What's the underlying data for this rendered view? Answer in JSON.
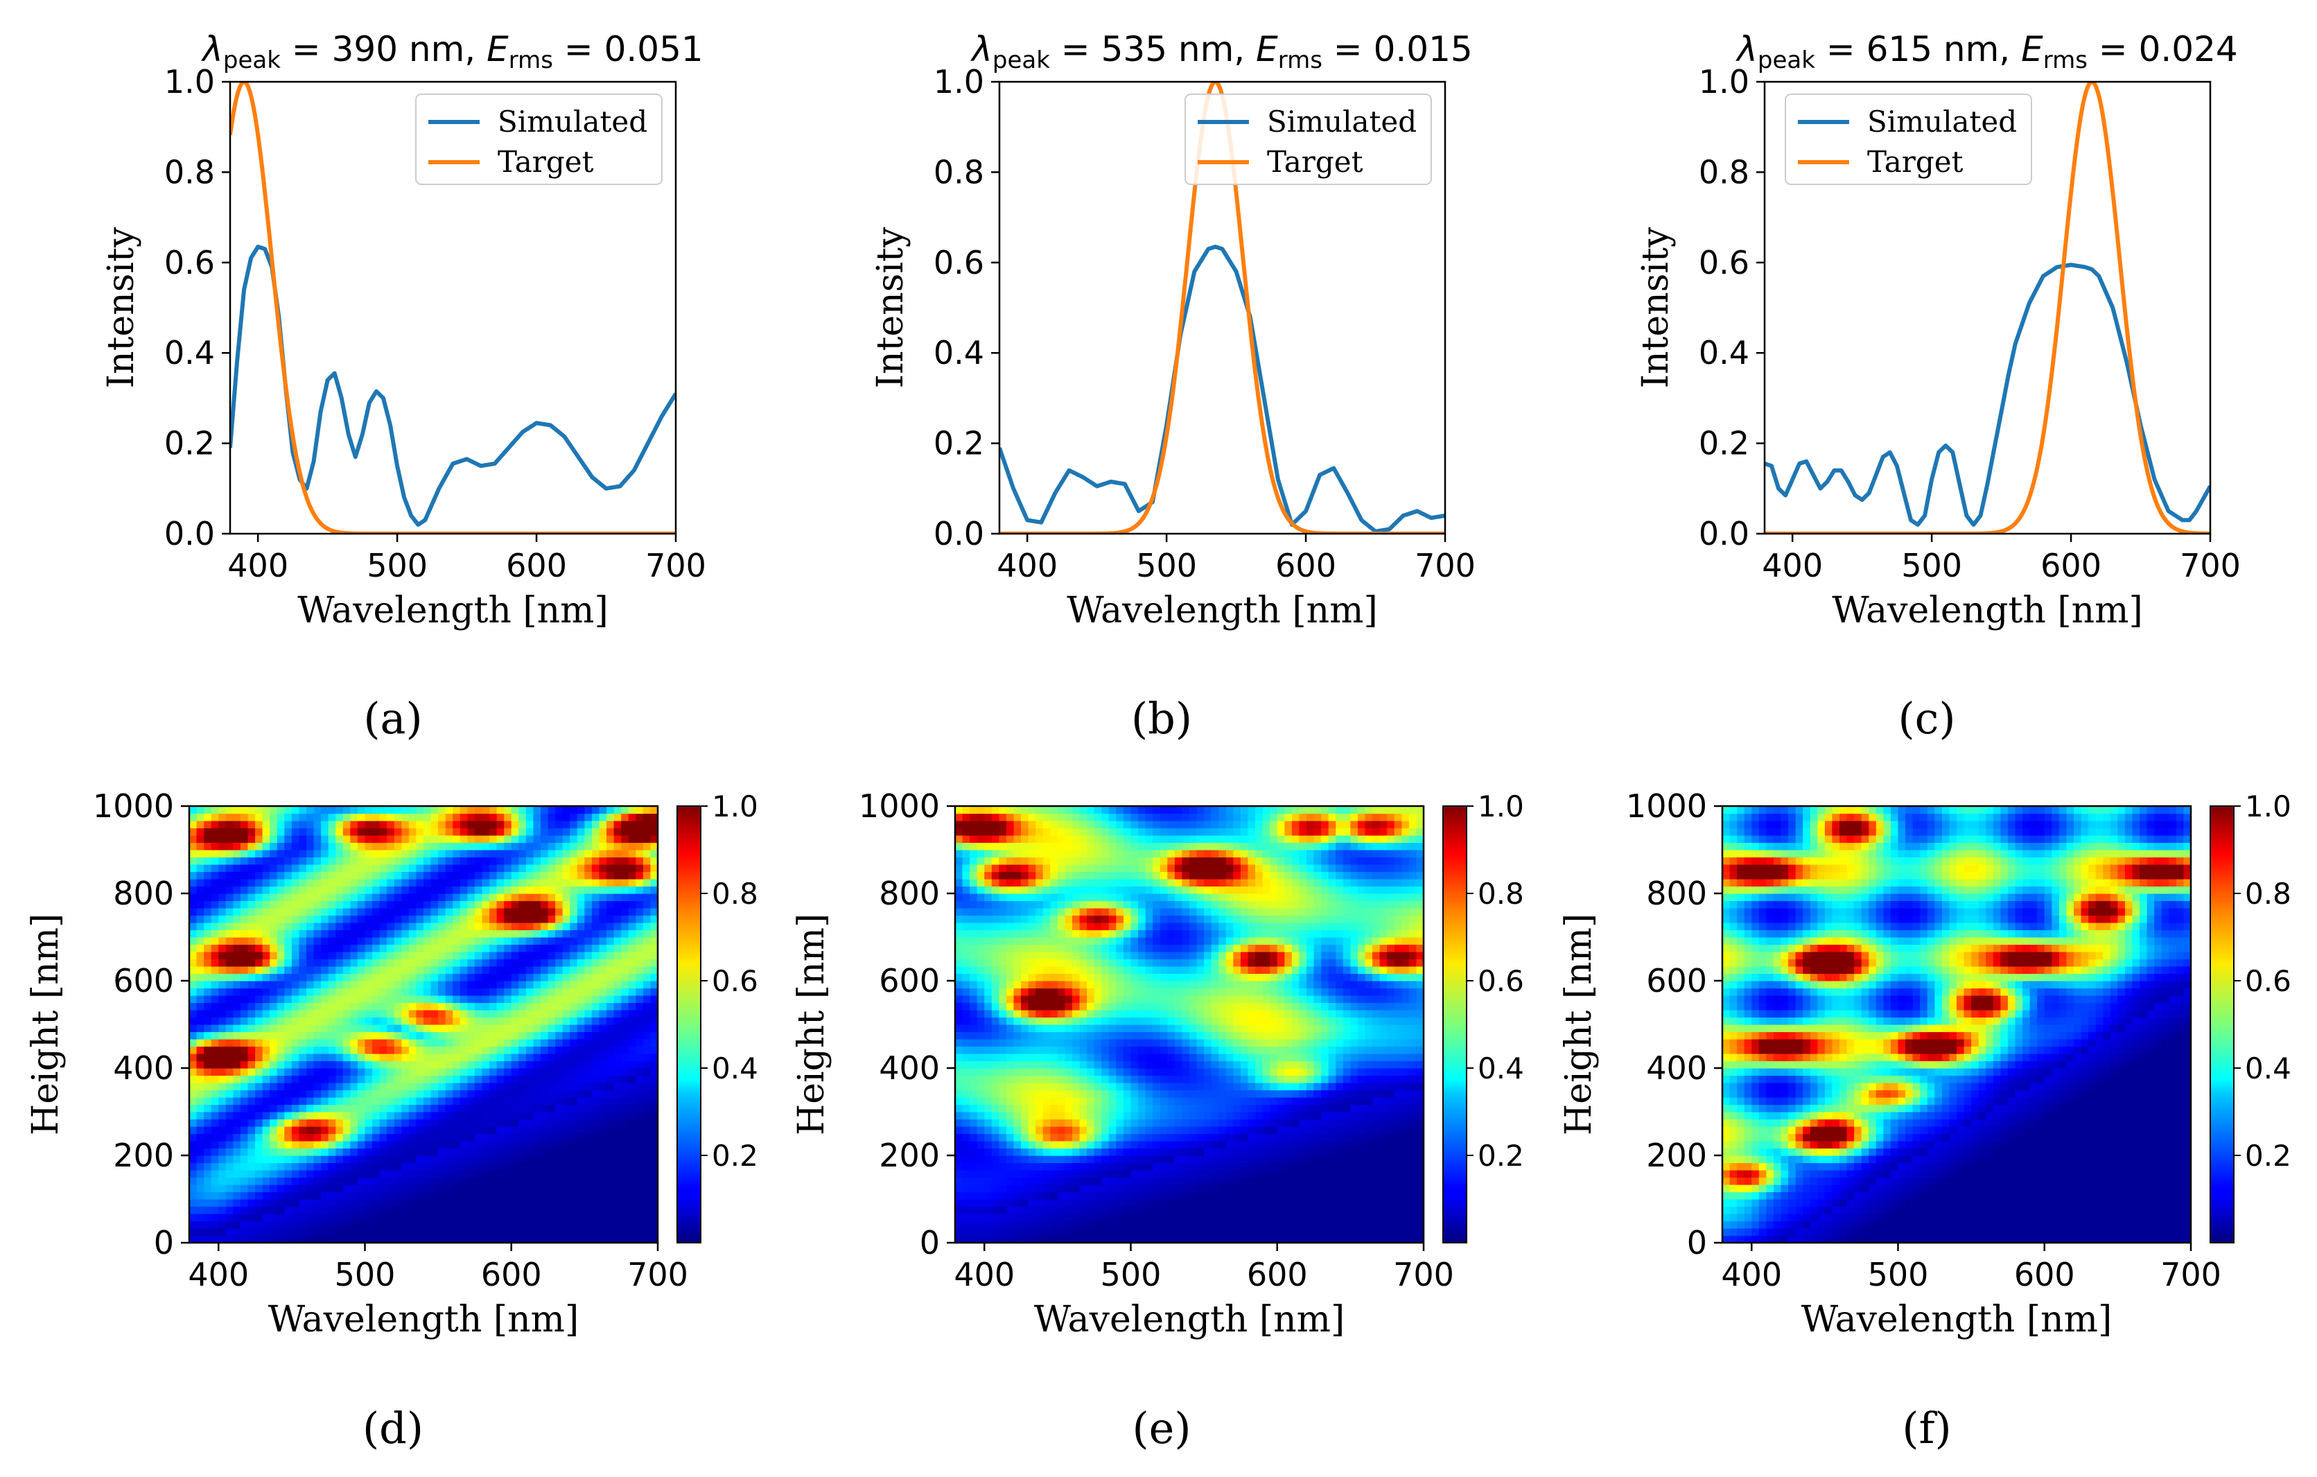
{
  "figure": {
    "captions": [
      "(a)",
      "(b)",
      "(c)",
      "(d)",
      "(e)",
      "(f)"
    ]
  },
  "colors": {
    "simulated": "#1f77b4",
    "target": "#ff7f0e"
  },
  "chart_data": [
    {
      "type": "line",
      "panel": "a",
      "title": "λpeak = 390 nm,  Erms = 0.051",
      "title_parts": {
        "lambda": "λ",
        "peak_sub": "peak",
        "peak_eq": "= 390 nm,",
        "E": "E",
        "rms_sub": "rms",
        "rms_eq": "= 0.051"
      },
      "xlabel": "Wavelength [nm]",
      "ylabel": "Intensity",
      "xlim": [
        380,
        700
      ],
      "ylim": [
        0,
        1.0
      ],
      "xticks": [
        400,
        500,
        600,
        700
      ],
      "yticks": [
        0.0,
        0.2,
        0.4,
        0.6,
        0.8,
        1.0
      ],
      "xtick_labels": [
        "400",
        "500",
        "600",
        "700"
      ],
      "ytick_labels": [
        "0.0",
        "0.2",
        "0.4",
        "0.6",
        "0.8",
        "1.0"
      ],
      "legend": {
        "position": "top-right",
        "entries": [
          "Simulated",
          "Target"
        ]
      },
      "series": [
        {
          "name": "Simulated",
          "x": [
            380,
            385,
            390,
            395,
            400,
            405,
            410,
            415,
            420,
            425,
            430,
            435,
            440,
            445,
            450,
            455,
            460,
            465,
            470,
            475,
            480,
            485,
            490,
            495,
            500,
            505,
            510,
            515,
            520,
            530,
            540,
            550,
            560,
            570,
            580,
            590,
            600,
            610,
            620,
            630,
            640,
            650,
            660,
            670,
            680,
            690,
            700
          ],
          "y": [
            0.19,
            0.38,
            0.54,
            0.61,
            0.635,
            0.63,
            0.59,
            0.48,
            0.32,
            0.18,
            0.12,
            0.1,
            0.16,
            0.27,
            0.34,
            0.355,
            0.3,
            0.22,
            0.17,
            0.22,
            0.29,
            0.315,
            0.3,
            0.24,
            0.15,
            0.08,
            0.04,
            0.02,
            0.03,
            0.1,
            0.155,
            0.165,
            0.15,
            0.155,
            0.19,
            0.225,
            0.245,
            0.24,
            0.215,
            0.17,
            0.125,
            0.1,
            0.105,
            0.14,
            0.2,
            0.26,
            0.31
          ]
        },
        {
          "name": "Target",
          "peak": 390,
          "sigma": 20
        }
      ]
    },
    {
      "type": "line",
      "panel": "b",
      "title": "λpeak = 535 nm,  Erms = 0.015",
      "title_parts": {
        "lambda": "λ",
        "peak_sub": "peak",
        "peak_eq": "= 535 nm,",
        "E": "E",
        "rms_sub": "rms",
        "rms_eq": "= 0.015"
      },
      "xlabel": "Wavelength [nm]",
      "ylabel": "Intensity",
      "xlim": [
        380,
        700
      ],
      "ylim": [
        0,
        1.0
      ],
      "xticks": [
        400,
        500,
        600,
        700
      ],
      "yticks": [
        0.0,
        0.2,
        0.4,
        0.6,
        0.8,
        1.0
      ],
      "xtick_labels": [
        "400",
        "500",
        "600",
        "700"
      ],
      "ytick_labels": [
        "0.0",
        "0.2",
        "0.4",
        "0.6",
        "0.8",
        "1.0"
      ],
      "legend": {
        "position": "top-right",
        "entries": [
          "Simulated",
          "Target"
        ]
      },
      "series": [
        {
          "name": "Simulated",
          "x": [
            380,
            390,
            400,
            410,
            420,
            430,
            440,
            450,
            460,
            470,
            480,
            490,
            500,
            510,
            520,
            530,
            535,
            540,
            550,
            560,
            570,
            580,
            590,
            600,
            610,
            620,
            630,
            640,
            650,
            660,
            670,
            680,
            690,
            700
          ],
          "y": [
            0.19,
            0.1,
            0.03,
            0.025,
            0.09,
            0.14,
            0.125,
            0.105,
            0.115,
            0.11,
            0.05,
            0.07,
            0.24,
            0.44,
            0.58,
            0.63,
            0.635,
            0.63,
            0.58,
            0.48,
            0.3,
            0.12,
            0.02,
            0.05,
            0.13,
            0.145,
            0.09,
            0.03,
            0.005,
            0.01,
            0.04,
            0.05,
            0.035,
            0.04
          ]
        },
        {
          "name": "Target",
          "peak": 535,
          "sigma": 20
        }
      ]
    },
    {
      "type": "line",
      "panel": "c",
      "title": "λpeak = 615 nm,  Erms = 0.024",
      "title_parts": {
        "lambda": "λ",
        "peak_sub": "peak",
        "peak_eq": "= 615 nm,",
        "E": "E",
        "rms_sub": "rms",
        "rms_eq": "= 0.024"
      },
      "xlabel": "Wavelength [nm]",
      "ylabel": "Intensity",
      "xlim": [
        380,
        700
      ],
      "ylim": [
        0,
        1.0
      ],
      "xticks": [
        400,
        500,
        600,
        700
      ],
      "yticks": [
        0.0,
        0.2,
        0.4,
        0.6,
        0.8,
        1.0
      ],
      "xtick_labels": [
        "400",
        "500",
        "600",
        "700"
      ],
      "ytick_labels": [
        "0.0",
        "0.2",
        "0.4",
        "0.6",
        "0.8",
        "1.0"
      ],
      "legend": {
        "position": "top-left",
        "entries": [
          "Simulated",
          "Target"
        ]
      },
      "series": [
        {
          "name": "Simulated",
          "x": [
            380,
            385,
            390,
            395,
            400,
            405,
            410,
            415,
            420,
            425,
            430,
            435,
            440,
            445,
            450,
            455,
            460,
            465,
            470,
            475,
            480,
            485,
            490,
            495,
            500,
            505,
            510,
            515,
            520,
            525,
            530,
            535,
            540,
            545,
            550,
            555,
            560,
            570,
            580,
            590,
            600,
            610,
            615,
            620,
            630,
            640,
            650,
            660,
            670,
            680,
            685,
            690,
            700
          ],
          "y": [
            0.155,
            0.15,
            0.1,
            0.085,
            0.12,
            0.155,
            0.16,
            0.13,
            0.1,
            0.115,
            0.14,
            0.14,
            0.115,
            0.085,
            0.075,
            0.09,
            0.13,
            0.17,
            0.18,
            0.15,
            0.09,
            0.03,
            0.02,
            0.04,
            0.12,
            0.18,
            0.195,
            0.18,
            0.11,
            0.04,
            0.02,
            0.04,
            0.11,
            0.19,
            0.27,
            0.35,
            0.42,
            0.51,
            0.57,
            0.59,
            0.595,
            0.59,
            0.585,
            0.57,
            0.5,
            0.38,
            0.24,
            0.12,
            0.05,
            0.03,
            0.03,
            0.05,
            0.105
          ]
        },
        {
          "name": "Target",
          "peak": 615,
          "sigma": 20
        }
      ]
    },
    {
      "type": "heatmap",
      "panel": "d",
      "xlabel": "Wavelength [nm]",
      "ylabel": "Height [nm]",
      "xlim": [
        380,
        700
      ],
      "ylim": [
        0,
        1000
      ],
      "xticks": [
        400,
        500,
        600,
        700
      ],
      "yticks": [
        0,
        200,
        400,
        600,
        800,
        1000
      ],
      "xtick_labels": [
        "400",
        "500",
        "600",
        "700"
      ],
      "ytick_labels": [
        "0",
        "200",
        "400",
        "600",
        "800",
        "1000"
      ],
      "colorbar": {
        "range": [
          0,
          1.0
        ],
        "ticks": [
          0.2,
          0.4,
          0.6,
          0.8,
          1.0
        ],
        "tick_labels": [
          "0.2",
          "0.4",
          "0.6",
          "0.8",
          "1.0"
        ],
        "colormap": "jet"
      },
      "model": {
        "base_height": 180,
        "onset_slope": 1.25,
        "bands": "diagonal",
        "hot_spots": [
          [
            465,
            250
          ],
          [
            510,
            450
          ],
          [
            545,
            520
          ],
          [
            615,
            750
          ],
          [
            680,
            850
          ],
          [
            690,
            950
          ],
          [
            585,
            950
          ],
          [
            500,
            950
          ],
          [
            420,
            650
          ],
          [
            400,
            430
          ],
          [
            410,
            930
          ]
        ]
      }
    },
    {
      "type": "heatmap",
      "panel": "e",
      "xlabel": "Wavelength [nm]",
      "ylabel": "Height [nm]",
      "xlim": [
        380,
        700
      ],
      "ylim": [
        0,
        1000
      ],
      "xticks": [
        400,
        500,
        600,
        700
      ],
      "yticks": [
        0,
        200,
        400,
        600,
        800,
        1000
      ],
      "xtick_labels": [
        "400",
        "500",
        "600",
        "700"
      ],
      "ytick_labels": [
        "0",
        "200",
        "400",
        "600",
        "800",
        "1000"
      ],
      "colorbar": {
        "range": [
          0,
          1.0
        ],
        "ticks": [
          0.2,
          0.4,
          0.6,
          0.8,
          1.0
        ],
        "tick_labels": [
          "0.2",
          "0.4",
          "0.6",
          "0.8",
          "1.0"
        ],
        "colormap": "jet"
      },
      "model": {
        "base_height": 220,
        "onset_slope": 1.0,
        "bands": "horizontal",
        "hot_spots": [
          [
            455,
            240
          ],
          [
            440,
            550
          ],
          [
            480,
            740
          ],
          [
            415,
            840
          ],
          [
            550,
            860
          ],
          [
            615,
            380
          ],
          [
            590,
            650
          ],
          [
            680,
            650
          ],
          [
            665,
            950
          ],
          [
            625,
            950
          ],
          [
            395,
            950
          ]
        ]
      }
    },
    {
      "type": "heatmap",
      "panel": "f",
      "xlabel": "Wavelength [nm]",
      "ylabel": "Height [nm]",
      "xlim": [
        380,
        700
      ],
      "ylim": [
        0,
        1000
      ],
      "xticks": [
        400,
        500,
        600,
        700
      ],
      "yticks": [
        0,
        200,
        400,
        600,
        800,
        1000
      ],
      "xtick_labels": [
        "400",
        "500",
        "600",
        "700"
      ],
      "ytick_labels": [
        "0",
        "200",
        "400",
        "600",
        "800",
        "1000"
      ],
      "colorbar": {
        "range": [
          0,
          1.0
        ],
        "ticks": [
          0.2,
          0.4,
          0.6,
          0.8,
          1.0
        ],
        "tick_labels": [
          "0.2",
          "0.4",
          "0.6",
          "0.8",
          "1.0"
        ],
        "colormap": "jet"
      },
      "model": {
        "base_height": 120,
        "onset_slope": 2.1,
        "bands": "grid",
        "hot_spots": [
          [
            400,
            150
          ],
          [
            455,
            240
          ],
          [
            500,
            340
          ],
          [
            520,
            450
          ],
          [
            560,
            550
          ],
          [
            590,
            650
          ],
          [
            640,
            760
          ],
          [
            680,
            850
          ],
          [
            420,
            450
          ],
          [
            450,
            640
          ],
          [
            410,
            850
          ],
          [
            470,
            950
          ]
        ]
      }
    }
  ]
}
